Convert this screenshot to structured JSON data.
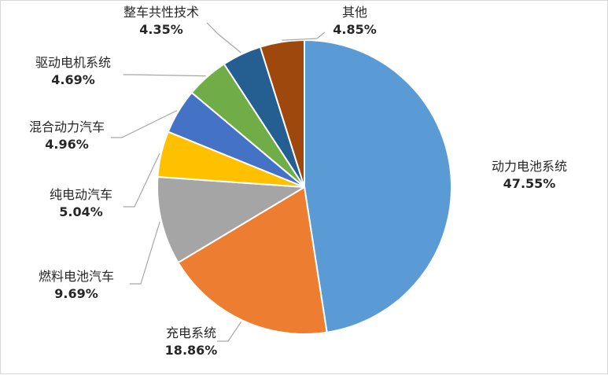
{
  "chart_data": {
    "type": "pie",
    "start_angle_deg": 0,
    "direction": "clockwise",
    "slices": [
      {
        "label": "动力电池系统",
        "value": 47.55,
        "display": "47.55%",
        "color": "#5b9bd5"
      },
      {
        "label": "充电系统",
        "value": 18.86,
        "display": "18.86%",
        "color": "#ed7d31"
      },
      {
        "label": "燃料电池汽车",
        "value": 9.69,
        "display": "9.69%",
        "color": "#a5a5a5"
      },
      {
        "label": "纯电动汽车",
        "value": 5.04,
        "display": "5.04%",
        "color": "#ffc000"
      },
      {
        "label": "混合动力汽车",
        "value": 4.96,
        "display": "4.96%",
        "color": "#4472c4"
      },
      {
        "label": "驱动电机系统",
        "value": 4.69,
        "display": "4.69%",
        "color": "#70ad47"
      },
      {
        "label": "整车共性技术",
        "value": 4.35,
        "display": "4.35%",
        "color": "#255e91"
      },
      {
        "label": "其他",
        "value": 4.85,
        "display": "4.85%",
        "color": "#9e480e"
      }
    ],
    "legend": "none",
    "data_labels": "outside with leader lines"
  }
}
